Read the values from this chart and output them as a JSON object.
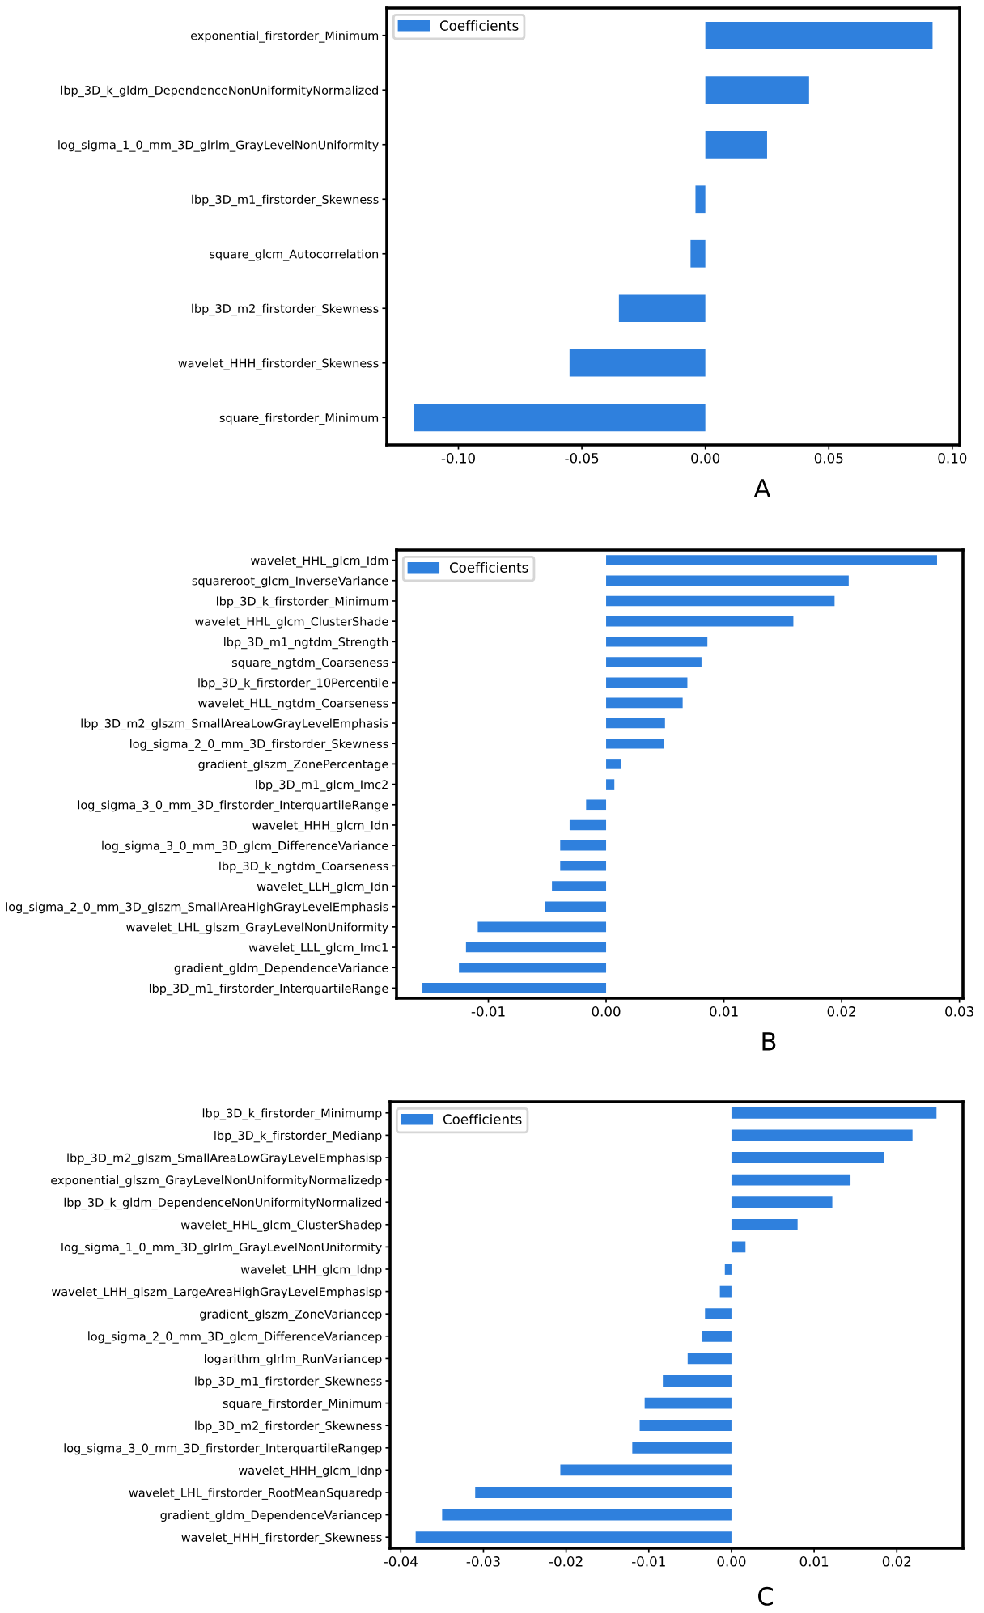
{
  "chart_data": [
    {
      "type": "bar",
      "orientation": "horizontal",
      "annotations": [
        "A"
      ],
      "legend": "top left",
      "grid": false,
      "categories": [
        "exponential_firstorder_Minimum",
        "lbp_3D_k_gldm_DependenceNonUniformityNormalized",
        "log_sigma_1_0_mm_3D_glrlm_GrayLevelNonUniformity",
        "lbp_3D_m1_firstorder_Skewness",
        "square_glcm_Autocorrelation",
        "lbp_3D_m2_firstorder_Skewness",
        "wavelet_HHH_firstorder_Skewness",
        "square_firstorder_Minimum"
      ],
      "series": [
        {
          "name": "Coefficients",
          "color": "#2f80dd",
          "values": [
            0.092,
            0.042,
            0.025,
            -0.004,
            -0.006,
            -0.035,
            -0.055,
            -0.118
          ]
        }
      ],
      "xlim": [
        -0.129,
        0.103
      ],
      "xticks": [
        {
          "value": -0.1,
          "label": "-0.10"
        },
        {
          "value": -0.05,
          "label": "-0.05"
        },
        {
          "value": 0,
          "label": "0.00"
        },
        {
          "value": 0.05,
          "label": "0.05"
        },
        {
          "value": 0.1,
          "label": "0.10"
        }
      ]
    },
    {
      "type": "bar",
      "orientation": "horizontal",
      "annotations": [
        "B"
      ],
      "legend": "top left",
      "grid": false,
      "categories": [
        "wavelet_HHL_glcm_Idm",
        "squareroot_glcm_InverseVariance",
        "lbp_3D_k_firstorder_Minimum",
        "wavelet_HHL_glcm_ClusterShade",
        "lbp_3D_m1_ngtdm_Strength",
        "square_ngtdm_Coarseness",
        "lbp_3D_k_firstorder_10Percentile",
        "wavelet_HLL_ngtdm_Coarseness",
        "lbp_3D_m2_glszm_SmallAreaLowGrayLevelEmphasis",
        "log_sigma_2_0_mm_3D_firstorder_Skewness",
        "gradient_glszm_ZonePercentage",
        "lbp_3D_m1_glcm_Imc2",
        "log_sigma_3_0_mm_3D_firstorder_InterquartileRange",
        "wavelet_HHH_glcm_Idn",
        "log_sigma_3_0_mm_3D_glcm_DifferenceVariance",
        "lbp_3D_k_ngtdm_Coarseness",
        "wavelet_LLH_glcm_Idn",
        "log_sigma_2_0_mm_3D_glszm_SmallAreaHighGrayLevelEmphasis",
        "wavelet_LHL_glszm_GrayLevelNonUniformity",
        "wavelet_LLL_glcm_Imc1",
        "gradient_gldm_DependenceVariance",
        "lbp_3D_m1_firstorder_InterquartileRange"
      ],
      "series": [
        {
          "name": "Coefficients",
          "color": "#2f80dd",
          "values": [
            0.0281,
            0.0206,
            0.0194,
            0.0159,
            0.0086,
            0.0081,
            0.0069,
            0.0065,
            0.005,
            0.0049,
            0.0013,
            0.0007,
            -0.0017,
            -0.0031,
            -0.0039,
            -0.0039,
            -0.0046,
            -0.0052,
            -0.0109,
            -0.0119,
            -0.0125,
            -0.0156
          ]
        }
      ],
      "xlim": [
        -0.0178,
        0.0303
      ],
      "xticks": [
        {
          "value": -0.01,
          "label": "-0.01"
        },
        {
          "value": 0,
          "label": "0.00"
        },
        0.01,
        0.02,
        0.03
      ]
    },
    {
      "type": "bar",
      "orientation": "horizontal",
      "annotations": [
        "C"
      ],
      "legend": "top left",
      "grid": false,
      "categories": [
        "lbp_3D_k_firstorder_Minimump",
        "lbp_3D_k_firstorder_Medianp",
        "lbp_3D_m2_glszm_SmallAreaLowGrayLevelEmphasisp",
        "exponential_glszm_GrayLevelNonUniformityNormalizedp",
        "lbp_3D_k_gldm_DependenceNonUniformityNormalized",
        "wavelet_HHL_glcm_ClusterShadep",
        "log_sigma_1_0_mm_3D_glrlm_GrayLevelNonUniformity",
        "wavelet_LHH_glcm_Idnp",
        "wavelet_LHH_glszm_LargeAreaHighGrayLevelEmphasisp",
        "gradient_glszm_ZoneVariancep",
        "log_sigma_2_0_mm_3D_glcm_DifferenceVariancep",
        "logarithm_glrlm_RunVariancep",
        "lbp_3D_m1_firstorder_Skewness",
        "square_firstorder_Minimum",
        "lbp_3D_m2_firstorder_Skewness",
        "log_sigma_3_0_mm_3D_firstorder_InterquartileRangep",
        "wavelet_HHH_glcm_Idnp",
        "wavelet_LHL_firstorder_RootMeanSquaredp",
        "gradient_gldm_DependenceVariancep",
        "wavelet_HHH_firstorder_Skewness"
      ],
      "series": [
        {
          "name": "Coefficients",
          "color": "#2f80dd",
          "values": [
            0.0248,
            0.0219,
            0.0185,
            0.0144,
            0.0122,
            0.008,
            0.0017,
            -0.0008,
            -0.0014,
            -0.0032,
            -0.0036,
            -0.0053,
            -0.0083,
            -0.0105,
            -0.0111,
            -0.012,
            -0.0207,
            -0.031,
            -0.035,
            -0.0382
          ]
        }
      ],
      "xlim": [
        -0.0413,
        0.028
      ],
      "xticks": [
        {
          "value": -0.04,
          "label": "-0.04"
        },
        {
          "value": -0.03,
          "label": "-0.03"
        },
        {
          "value": -0.02,
          "label": "-0.02"
        },
        {
          "value": -0.01,
          "label": "-0.01"
        },
        {
          "value": 0,
          "label": "0.00"
        },
        0.01,
        0.02
      ]
    }
  ]
}
